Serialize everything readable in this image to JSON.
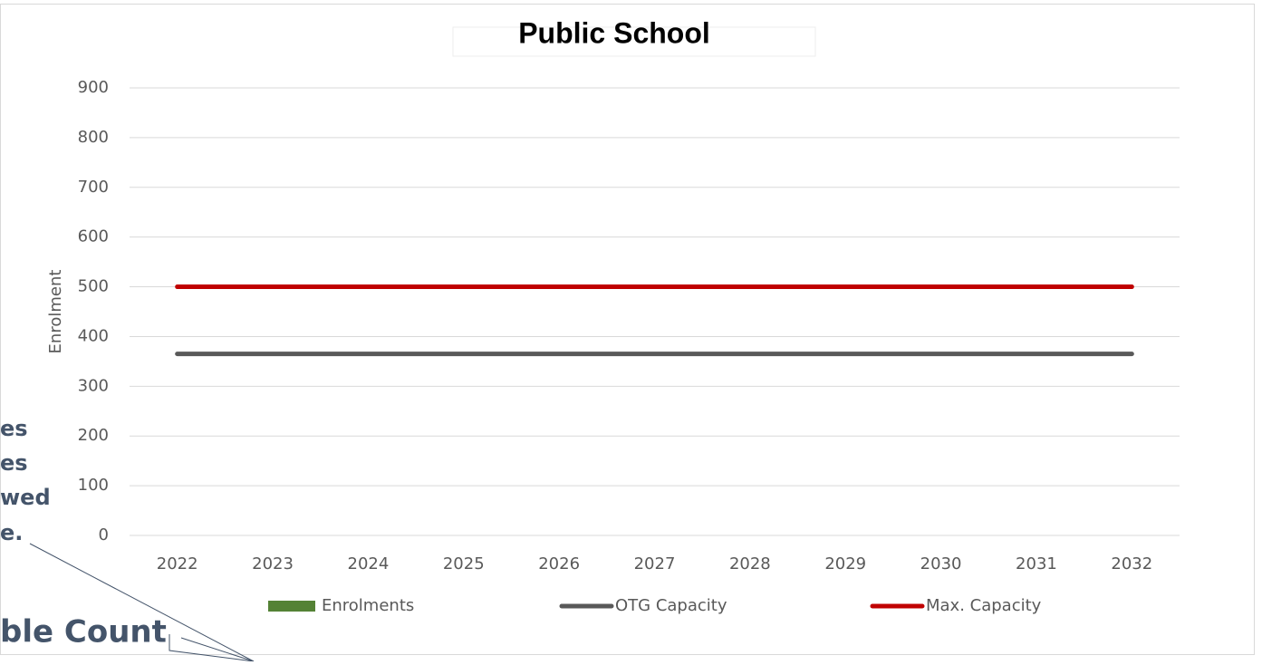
{
  "chart_data": {
    "type": "line",
    "title": "Public School",
    "y_label": "Enrolment",
    "categories": [
      "2022",
      "2023",
      "2024",
      "2025",
      "2026",
      "2027",
      "2028",
      "2029",
      "2030",
      "2031",
      "2032"
    ],
    "series": [
      {
        "name": "Enrolments",
        "color": "#548235",
        "mark": "bar",
        "values": [
          null,
          null,
          null,
          null,
          null,
          null,
          null,
          null,
          null,
          null,
          null
        ]
      },
      {
        "name": "OTG Capacity",
        "color": "#595959",
        "values": [
          365,
          365,
          365,
          365,
          365,
          365,
          365,
          365,
          365,
          365,
          365
        ]
      },
      {
        "name": "Max. Capacity",
        "color": "#c00000",
        "values": [
          500,
          500,
          500,
          500,
          500,
          500,
          500,
          500,
          500,
          500,
          500
        ]
      }
    ],
    "ylim": [
      0,
      900
    ],
    "yticks": [
      0,
      100,
      200,
      300,
      400,
      500,
      600,
      700,
      800,
      900
    ],
    "grid": true,
    "annotations": [
      "es",
      "es",
      "wed",
      "e.",
      "ble Count"
    ]
  }
}
